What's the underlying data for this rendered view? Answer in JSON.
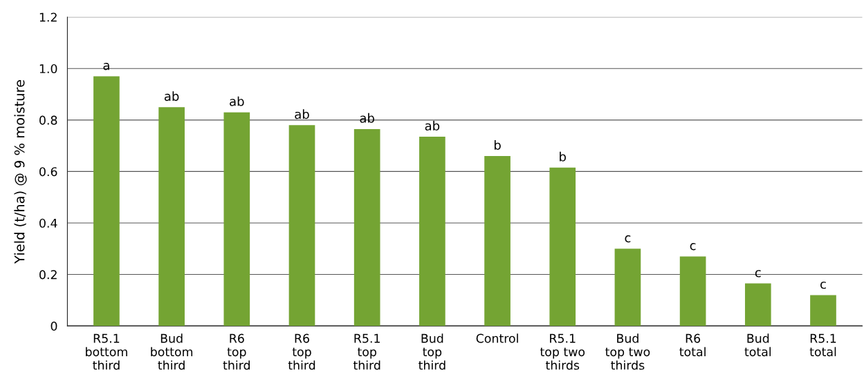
{
  "chart_data": {
    "type": "bar",
    "ylabel": "Yield (t/ha) @ 9 % moisture",
    "categories": [
      "R5.1\nbottom\nthird",
      "Bud\nbottom\nthird",
      "R6\ntop\nthird",
      "R6\ntop\nthird",
      "R5.1\ntop\nthird",
      "Bud\ntop\nthird",
      "Control",
      "R5.1\ntop two\nthirds",
      "Bud\ntop two\nthirds",
      "R6\ntotal",
      "Bud\ntotal",
      "R5.1\ntotal"
    ],
    "values": [
      0.97,
      0.85,
      0.83,
      0.78,
      0.765,
      0.735,
      0.66,
      0.615,
      0.3,
      0.27,
      0.165,
      0.12
    ],
    "value_labels": [
      "a",
      "ab",
      "ab",
      "ab",
      "ab",
      "ab",
      "b",
      "b",
      "c",
      "c",
      "c",
      "c"
    ],
    "color": "#74a433",
    "ylim": [
      0,
      1.2
    ],
    "yticks": [
      {
        "value": 0,
        "label": "0"
      },
      0.2,
      0.4,
      0.6,
      0.8,
      {
        "value": 1.0,
        "label": "1.0"
      },
      1.2
    ],
    "grid": "y"
  }
}
